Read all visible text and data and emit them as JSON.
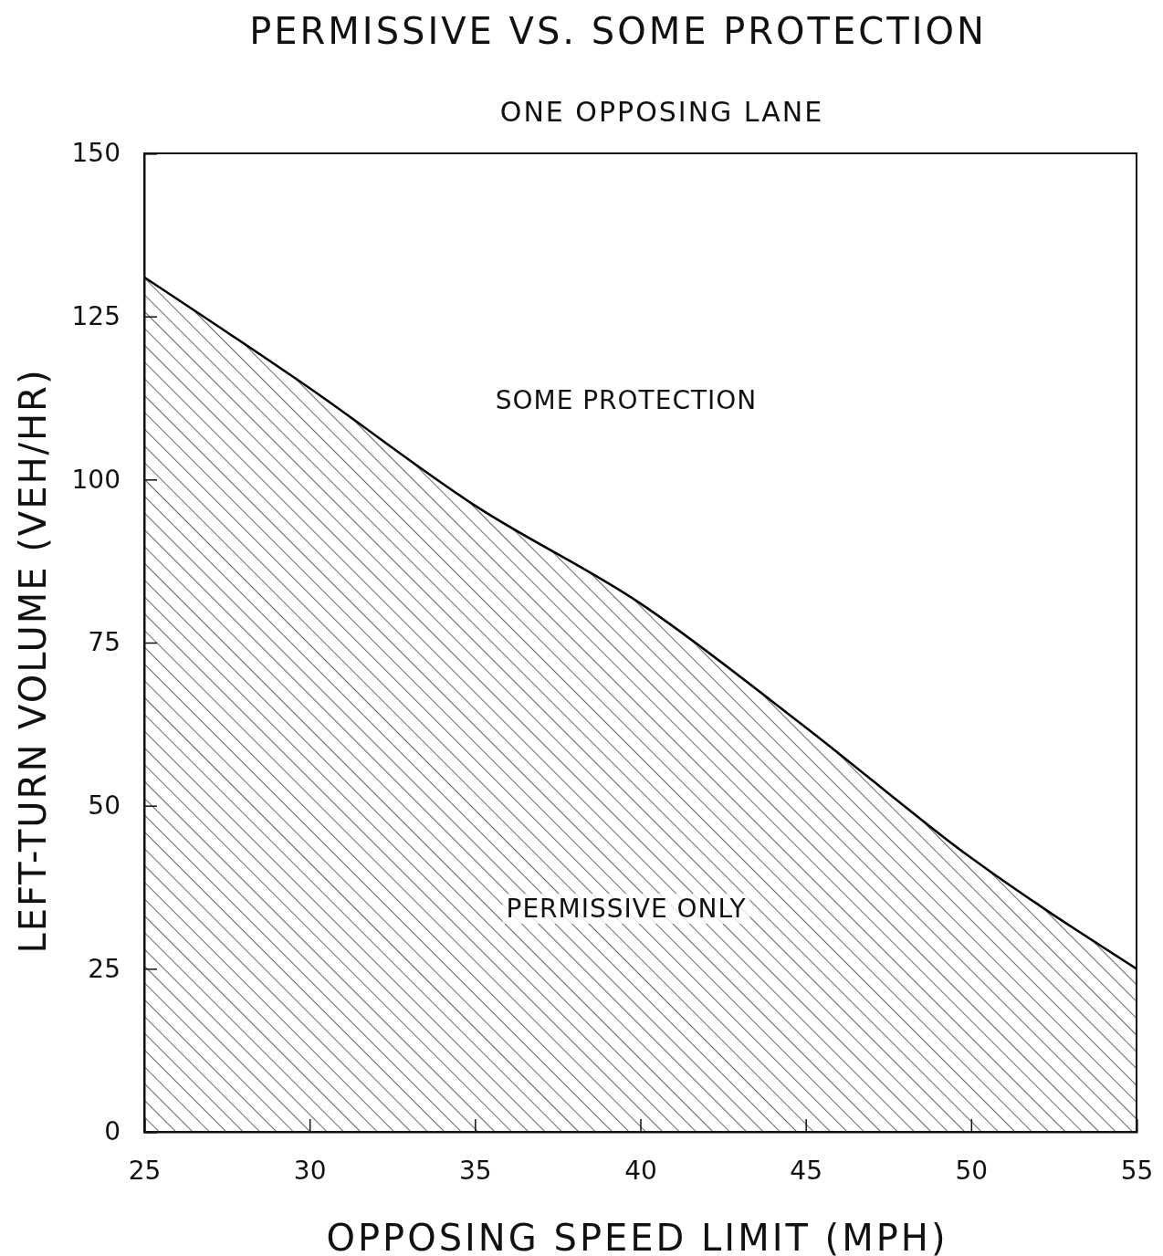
{
  "chart_data": {
    "type": "area",
    "title": "PERMISSIVE VS. SOME PROTECTION",
    "subtitle": "ONE OPPOSING LANE",
    "xlabel": "OPPOSING SPEED LIMIT (MPH)",
    "ylabel": "LEFT-TURN VOLUME (VEH/HR)",
    "x": [
      25,
      30,
      35,
      40,
      45,
      50,
      55
    ],
    "series": [
      {
        "color": "#000000",
        "values": [
          131,
          114,
          96,
          81,
          62,
          42,
          25
        ]
      }
    ],
    "xlim": [
      25,
      55
    ],
    "xticks": [
      25,
      30,
      35,
      40,
      45,
      50,
      55
    ],
    "ylim": [
      0,
      150
    ],
    "yticks": [
      0,
      25,
      50,
      75,
      100,
      125,
      150
    ],
    "annotations": [
      "SOME PROTECTION",
      "PERMISSIVE ONLY"
    ],
    "grid": false,
    "marker": "none",
    "line_style": "solid"
  }
}
